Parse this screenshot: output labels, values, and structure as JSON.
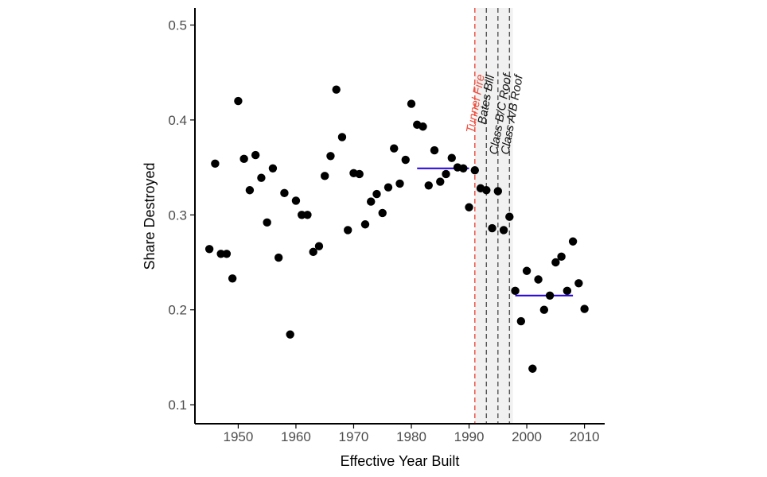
{
  "chart_data": {
    "type": "scatter",
    "title": "",
    "xlabel": "Effective Year Built",
    "ylabel": "Share Destroyed",
    "xlim": [
      1942.5,
      2013.5
    ],
    "ylim": [
      0.08,
      0.518
    ],
    "xticks": [
      1950,
      1960,
      1970,
      1980,
      1990,
      2000,
      2010
    ],
    "yticks": [
      0.1,
      0.2,
      0.3,
      0.4,
      0.5
    ],
    "xtick_labels": [
      "1950",
      "1960",
      "1970",
      "1980",
      "1990",
      "2000",
      "2010"
    ],
    "ytick_labels": [
      "0.1",
      "0.2",
      "0.3",
      "0.4",
      "0.5"
    ],
    "grid": false,
    "legend": "none",
    "series": [
      {
        "x": [
          1945,
          1946,
          1947,
          1948,
          1949,
          1950,
          1951,
          1952,
          1953,
          1954,
          1955,
          1956,
          1957,
          1958,
          1959,
          1960,
          1961,
          1962,
          1963,
          1964,
          1965,
          1966,
          1967,
          1968,
          1969,
          1970,
          1971,
          1972,
          1973,
          1974,
          1975,
          1976,
          1977,
          1978,
          1979,
          1980,
          1981,
          1982,
          1983,
          1984,
          1985,
          1986,
          1987,
          1988,
          1989,
          1990,
          1991,
          1992,
          1993,
          1994,
          1995,
          1996,
          1997,
          1998,
          1999,
          2000,
          2001,
          2002,
          2003,
          2004,
          2005,
          2006,
          2007,
          2008,
          2009,
          2010
        ],
        "y": [
          0.264,
          0.354,
          0.259,
          0.259,
          0.233,
          0.42,
          0.359,
          0.326,
          0.363,
          0.339,
          0.292,
          0.349,
          0.255,
          0.323,
          0.174,
          0.315,
          0.3,
          0.3,
          0.261,
          0.267,
          0.341,
          0.362,
          0.432,
          0.382,
          0.284,
          0.344,
          0.343,
          0.29,
          0.314,
          0.322,
          0.302,
          0.329,
          0.37,
          0.333,
          0.358,
          0.417,
          0.395,
          0.393,
          0.331,
          0.368,
          0.335,
          0.343,
          0.36,
          0.35,
          0.349,
          0.308,
          0.347,
          0.328,
          0.326,
          0.286,
          0.325,
          0.284,
          0.298,
          0.22,
          0.188,
          0.241,
          0.138,
          0.232,
          0.2,
          0.215,
          0.25,
          0.256,
          0.22,
          0.272,
          0.228,
          0.201
        ]
      }
    ],
    "mean_lines": [
      {
        "x_start": 1981,
        "x_end": 1990,
        "y": 0.349,
        "color": "#2200dd"
      },
      {
        "x_start": 1998,
        "x_end": 2008,
        "y": 0.215,
        "color": "#2200dd"
      }
    ],
    "shaded_region": {
      "x_start": 1991.0,
      "x_end": 1997.6,
      "color": "#f1f1f1"
    },
    "annotations": [
      {
        "x": 1991.0,
        "label": "Tunnel Fire",
        "color": "#ee4b3b"
      },
      {
        "x": 1993.0,
        "label": "Bates Bill",
        "color": "#111111"
      },
      {
        "x": 1995.0,
        "label": "Class B/C Roof",
        "color": "#111111"
      },
      {
        "x": 1997.0,
        "label": "Class A/B Roof",
        "color": "#111111"
      }
    ],
    "colors": {
      "points": "#000000",
      "axis": "#000000",
      "mean_line": "#2200dd",
      "tunnel_fire": "#ee4b3b",
      "policy_lines": "#555555"
    }
  }
}
